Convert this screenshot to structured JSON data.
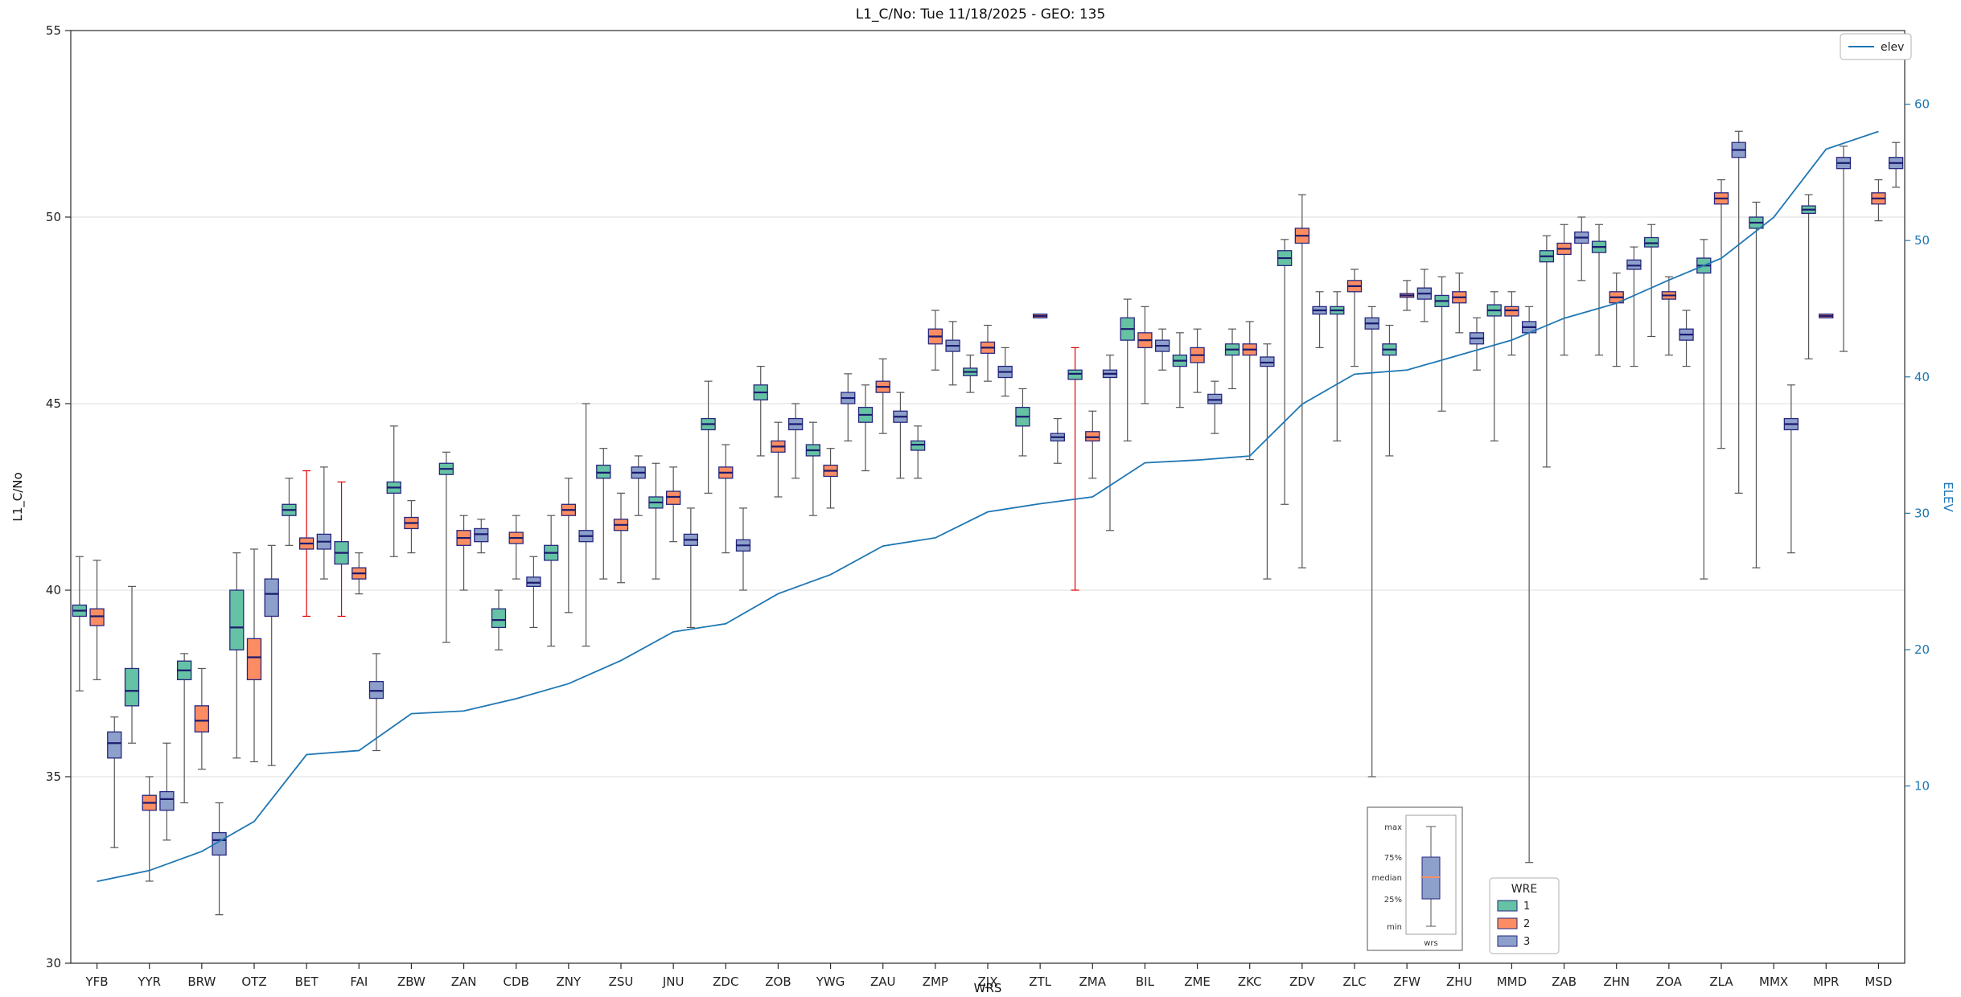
{
  "chart_data": {
    "type": "boxplot+line",
    "title": "L1_C/No: Tue 11/18/2025 - GEO: 135",
    "xlabel": "WRS",
    "ylabel_left": "L1_C/No",
    "ylabel_right": "ELEV",
    "ylim_left": [
      30,
      55
    ],
    "yticks_left": [
      30,
      35,
      40,
      45,
      50,
      55
    ],
    "ylim_right": [
      -3,
      65.4
    ],
    "yticks_right": [
      10,
      20,
      30,
      40,
      50,
      60
    ],
    "right_axis_color": "#1f77b4",
    "grid": "horizontal",
    "box_edge_color": "#26267e",
    "median_color": "#1b1b6f",
    "whisker_color": "#555555",
    "red_whisker_color": "#dd0000",
    "categories": [
      "YFB",
      "YYR",
      "BRW",
      "OTZ",
      "BET",
      "FAI",
      "ZBW",
      "ZAN",
      "CDB",
      "ZNY",
      "ZSU",
      "JNU",
      "ZDC",
      "ZOB",
      "YWG",
      "ZAU",
      "ZMP",
      "ZJX",
      "ZTL",
      "ZMA",
      "BIL",
      "ZME",
      "ZKC",
      "ZDV",
      "ZLC",
      "ZFW",
      "ZHU",
      "MMD",
      "ZAB",
      "ZHN",
      "ZOA",
      "ZLA",
      "MMX",
      "MPR",
      "MSD"
    ],
    "series": [
      {
        "name": "1",
        "color": "#66c2a5",
        "boxes": [
          [
            37.3,
            39.3,
            39.45,
            39.6,
            40.9
          ],
          [
            35.9,
            36.9,
            37.3,
            37.9,
            40.1
          ],
          [
            34.3,
            37.6,
            37.85,
            38.1,
            38.3
          ],
          [
            35.5,
            38.4,
            39.0,
            40.0,
            41.0
          ],
          [
            41.2,
            42.0,
            42.15,
            42.3,
            43.0
          ],
          [
            39.3,
            40.7,
            41.0,
            41.3,
            42.9
          ],
          [
            40.9,
            42.6,
            42.75,
            42.9,
            44.4
          ],
          [
            38.6,
            43.1,
            43.25,
            43.4,
            43.7
          ],
          [
            38.4,
            39.0,
            39.2,
            39.5,
            40.0
          ],
          [
            38.5,
            40.8,
            41.0,
            41.2,
            42.0
          ],
          [
            40.3,
            43.0,
            43.15,
            43.35,
            43.8
          ],
          [
            40.3,
            42.2,
            42.35,
            42.5,
            43.4
          ],
          [
            42.6,
            44.3,
            44.45,
            44.6,
            45.6
          ],
          [
            43.6,
            45.1,
            45.3,
            45.5,
            46.0
          ],
          [
            42.0,
            43.6,
            43.75,
            43.9,
            44.5
          ],
          [
            43.2,
            44.5,
            44.7,
            44.9,
            45.5
          ],
          [
            43.0,
            43.75,
            43.9,
            44.0,
            44.4
          ],
          [
            45.3,
            45.75,
            45.85,
            45.95,
            46.3
          ],
          [
            43.6,
            44.4,
            44.65,
            44.9,
            45.4
          ],
          [
            40.0,
            45.65,
            45.8,
            45.9,
            46.5
          ],
          [
            44.0,
            46.7,
            47.0,
            47.3,
            47.8
          ],
          [
            44.9,
            46.0,
            46.15,
            46.3,
            46.9
          ],
          [
            45.4,
            46.3,
            46.45,
            46.6,
            47.0
          ],
          [
            42.3,
            48.7,
            48.9,
            49.1,
            49.4
          ],
          [
            44.0,
            47.4,
            47.5,
            47.6,
            48.0
          ],
          [
            43.6,
            46.3,
            46.45,
            46.6,
            47.1
          ],
          [
            44.8,
            47.6,
            47.75,
            47.9,
            48.4
          ],
          [
            44.0,
            47.35,
            47.5,
            47.65,
            48.0
          ],
          [
            43.3,
            48.8,
            48.95,
            49.1,
            49.5
          ],
          [
            46.3,
            49.05,
            49.2,
            49.35,
            49.8
          ],
          [
            46.8,
            49.2,
            49.3,
            49.45,
            49.8
          ],
          [
            40.3,
            48.5,
            48.7,
            48.9,
            49.4
          ],
          [
            40.6,
            49.7,
            49.85,
            50.0,
            50.4
          ],
          [
            46.2,
            50.1,
            50.2,
            50.3,
            50.6
          ],
          null
        ]
      },
      {
        "name": "2",
        "color": "#fc8d62",
        "boxes": [
          [
            37.6,
            39.05,
            39.3,
            39.5,
            40.8
          ],
          [
            32.2,
            34.1,
            34.3,
            34.5,
            35.0
          ],
          [
            35.2,
            36.2,
            36.5,
            36.9,
            37.9
          ],
          [
            35.4,
            37.6,
            38.2,
            38.7,
            41.1
          ],
          [
            39.3,
            41.1,
            41.25,
            41.4,
            43.2
          ],
          [
            39.9,
            40.3,
            40.45,
            40.6,
            41.0
          ],
          [
            41.0,
            41.65,
            41.8,
            41.95,
            42.4
          ],
          [
            40.0,
            41.2,
            41.4,
            41.6,
            42.0
          ],
          [
            40.3,
            41.25,
            41.4,
            41.55,
            42.0
          ],
          [
            39.4,
            42.0,
            42.15,
            42.3,
            43.0
          ],
          [
            40.2,
            41.6,
            41.75,
            41.9,
            42.6
          ],
          [
            41.3,
            42.3,
            42.5,
            42.65,
            43.3
          ],
          [
            41.0,
            43.0,
            43.15,
            43.3,
            43.9
          ],
          [
            42.5,
            43.7,
            43.85,
            44.0,
            44.5
          ],
          [
            42.2,
            43.05,
            43.2,
            43.35,
            43.8
          ],
          [
            44.2,
            45.3,
            45.45,
            45.6,
            46.2
          ],
          [
            45.9,
            46.6,
            46.8,
            47.0,
            47.5
          ],
          [
            45.6,
            46.35,
            46.5,
            46.65,
            47.1
          ],
          [
            47.3,
            47.3,
            47.35,
            47.4,
            47.4
          ],
          [
            43.0,
            44.0,
            44.1,
            44.25,
            44.8
          ],
          [
            45.0,
            46.5,
            46.7,
            46.9,
            47.6
          ],
          [
            45.3,
            46.1,
            46.3,
            46.5,
            47.0
          ],
          [
            43.5,
            46.3,
            46.45,
            46.6,
            47.2
          ],
          [
            40.6,
            49.3,
            49.5,
            49.7,
            50.6
          ],
          [
            46.0,
            48.0,
            48.15,
            48.3,
            48.6
          ],
          [
            47.5,
            47.85,
            47.9,
            47.95,
            48.3
          ],
          [
            46.9,
            47.7,
            47.85,
            48.0,
            48.5
          ],
          [
            46.3,
            47.35,
            47.5,
            47.6,
            48.0
          ],
          [
            46.3,
            49.0,
            49.15,
            49.3,
            49.8
          ],
          [
            46.0,
            47.7,
            47.85,
            48.0,
            48.5
          ],
          [
            46.3,
            47.8,
            47.9,
            48.0,
            48.4
          ],
          [
            43.8,
            50.35,
            50.5,
            50.65,
            51.0
          ],
          null,
          [
            47.3,
            47.3,
            47.35,
            47.4,
            47.4
          ],
          [
            49.9,
            50.35,
            50.5,
            50.65,
            51.0
          ]
        ]
      },
      {
        "name": "3",
        "color": "#8da0cb",
        "boxes": [
          [
            33.1,
            35.5,
            35.9,
            36.2,
            36.6
          ],
          [
            33.3,
            34.1,
            34.4,
            34.6,
            35.9
          ],
          [
            31.3,
            32.9,
            33.3,
            33.5,
            34.3
          ],
          [
            35.3,
            39.3,
            39.9,
            40.3,
            41.2
          ],
          [
            40.3,
            41.1,
            41.3,
            41.5,
            43.3
          ],
          [
            35.7,
            37.1,
            37.3,
            37.55,
            38.3
          ],
          null,
          [
            41.0,
            41.3,
            41.5,
            41.65,
            41.9
          ],
          [
            39.0,
            40.1,
            40.2,
            40.35,
            40.9
          ],
          [
            38.5,
            41.3,
            41.45,
            41.6,
            45.0
          ],
          [
            42.0,
            43.0,
            43.15,
            43.3,
            43.6
          ],
          [
            39.0,
            41.2,
            41.35,
            41.5,
            42.2
          ],
          [
            40.0,
            41.05,
            41.2,
            41.35,
            42.2
          ],
          [
            43.0,
            44.3,
            44.45,
            44.6,
            45.0
          ],
          [
            44.0,
            45.0,
            45.15,
            45.3,
            45.8
          ],
          [
            43.0,
            44.5,
            44.65,
            44.8,
            45.3
          ],
          [
            45.5,
            46.4,
            46.55,
            46.7,
            47.2
          ],
          [
            45.2,
            45.7,
            45.85,
            46.0,
            46.5
          ],
          [
            43.4,
            44.0,
            44.1,
            44.2,
            44.6
          ],
          [
            41.6,
            45.7,
            45.8,
            45.9,
            46.3
          ],
          [
            45.9,
            46.4,
            46.55,
            46.7,
            47.0
          ],
          [
            44.2,
            45.0,
            45.1,
            45.25,
            45.6
          ],
          [
            40.3,
            46.0,
            46.1,
            46.25,
            46.6
          ],
          [
            46.5,
            47.4,
            47.5,
            47.6,
            48.0
          ],
          [
            35.0,
            47.0,
            47.15,
            47.3,
            47.6
          ],
          [
            47.2,
            47.8,
            47.95,
            48.1,
            48.6
          ],
          [
            45.9,
            46.6,
            46.75,
            46.9,
            47.3
          ],
          [
            32.7,
            46.9,
            47.05,
            47.2,
            47.6
          ],
          [
            48.3,
            49.3,
            49.45,
            49.6,
            50.0
          ],
          [
            46.0,
            48.6,
            48.7,
            48.85,
            49.2
          ],
          [
            46.0,
            46.7,
            46.85,
            47.0,
            47.5
          ],
          [
            42.6,
            51.6,
            51.8,
            52.0,
            52.3
          ],
          [
            41.0,
            44.3,
            44.45,
            44.6,
            45.5
          ],
          [
            46.4,
            51.3,
            51.45,
            51.6,
            51.9
          ],
          [
            50.8,
            51.3,
            51.45,
            51.6,
            52.0
          ]
        ]
      }
    ],
    "red_whiskers": [
      [
        4,
        1
      ],
      [
        5,
        0
      ],
      [
        19,
        0
      ]
    ],
    "elev_line": {
      "name": "elev",
      "color": "#1f77b4",
      "values": [
        3,
        3.8,
        5.2,
        7.4,
        12.3,
        12.6,
        15.3,
        15.5,
        16.4,
        17.5,
        19.2,
        21.3,
        21.9,
        24.1,
        25.5,
        27.6,
        28.2,
        30.1,
        30.7,
        31.2,
        33.7,
        33.9,
        34.2,
        38,
        40.2,
        40.5,
        41.6,
        42.7,
        44.3,
        45.4,
        47.1,
        48.7,
        51.7,
        56.7,
        58
      ]
    },
    "legend_elev": "elev",
    "legend_wre": {
      "title": "WRE",
      "entries": [
        "1",
        "2",
        "3"
      ]
    },
    "anatomy": {
      "labels": [
        "max",
        "75%",
        "median",
        "25%",
        "min"
      ],
      "xlabel": "wrs"
    }
  }
}
